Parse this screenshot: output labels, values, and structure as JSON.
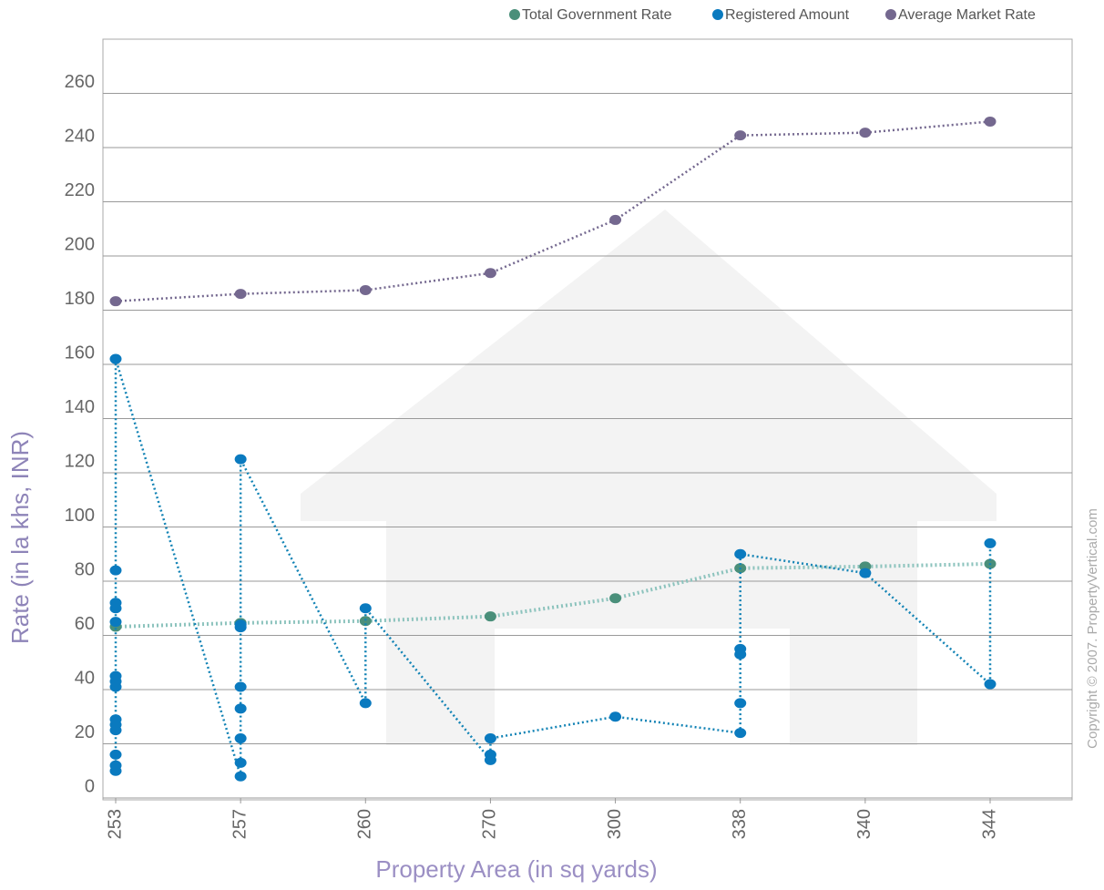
{
  "chart_data": {
    "type": "line",
    "x_label": "Property Area (in sq yards)",
    "y_label": "Rate (in la khs, INR)",
    "annotation": "Copyright © 2007. PropertyVertical.com",
    "categories": [
      "253",
      "257",
      "260",
      "270",
      "300",
      "338",
      "340",
      "344"
    ],
    "ylim": [
      0,
      280
    ],
    "yticks": [
      0,
      20,
      40,
      60,
      80,
      100,
      120,
      140,
      160,
      180,
      200,
      220,
      240,
      260
    ],
    "grid": true,
    "legend": "top-right",
    "series": [
      {
        "name": "Total Government Rate",
        "color": "#4a8f7a",
        "line_color": "#8cc3bd",
        "values": [
          63.2,
          64.6,
          65.3,
          67,
          73.7,
          84.8,
          85.4,
          86.4
        ]
      },
      {
        "name": "Registered Amount",
        "color": "#0a7abf",
        "line_color": "#1283b5",
        "x": [
          "253",
          "253",
          "253",
          "253",
          "253",
          "253",
          "253",
          "253",
          "253",
          "253",
          "253",
          "253",
          "253",
          "253",
          "257",
          "257",
          "257",
          "257",
          "257",
          "257",
          "257",
          "257",
          "260",
          "260",
          "270",
          "270",
          "270",
          "300",
          "338",
          "338",
          "338",
          "338",
          "338",
          "340",
          "344",
          "344"
        ],
        "values": [
          10,
          12,
          16,
          25,
          27,
          29,
          41,
          43,
          45,
          65,
          70,
          72,
          84,
          162,
          8,
          13,
          22,
          33,
          41,
          63,
          64,
          125,
          35,
          70,
          14,
          16,
          22,
          30,
          24,
          35,
          53,
          55,
          90,
          83,
          42,
          94
        ]
      },
      {
        "name": "Average Market Rate",
        "color": "#74688f",
        "line_color": "#74688f",
        "values": [
          183.3,
          186,
          187.4,
          193.7,
          213.3,
          244.5,
          245.5,
          249.6
        ]
      }
    ]
  }
}
